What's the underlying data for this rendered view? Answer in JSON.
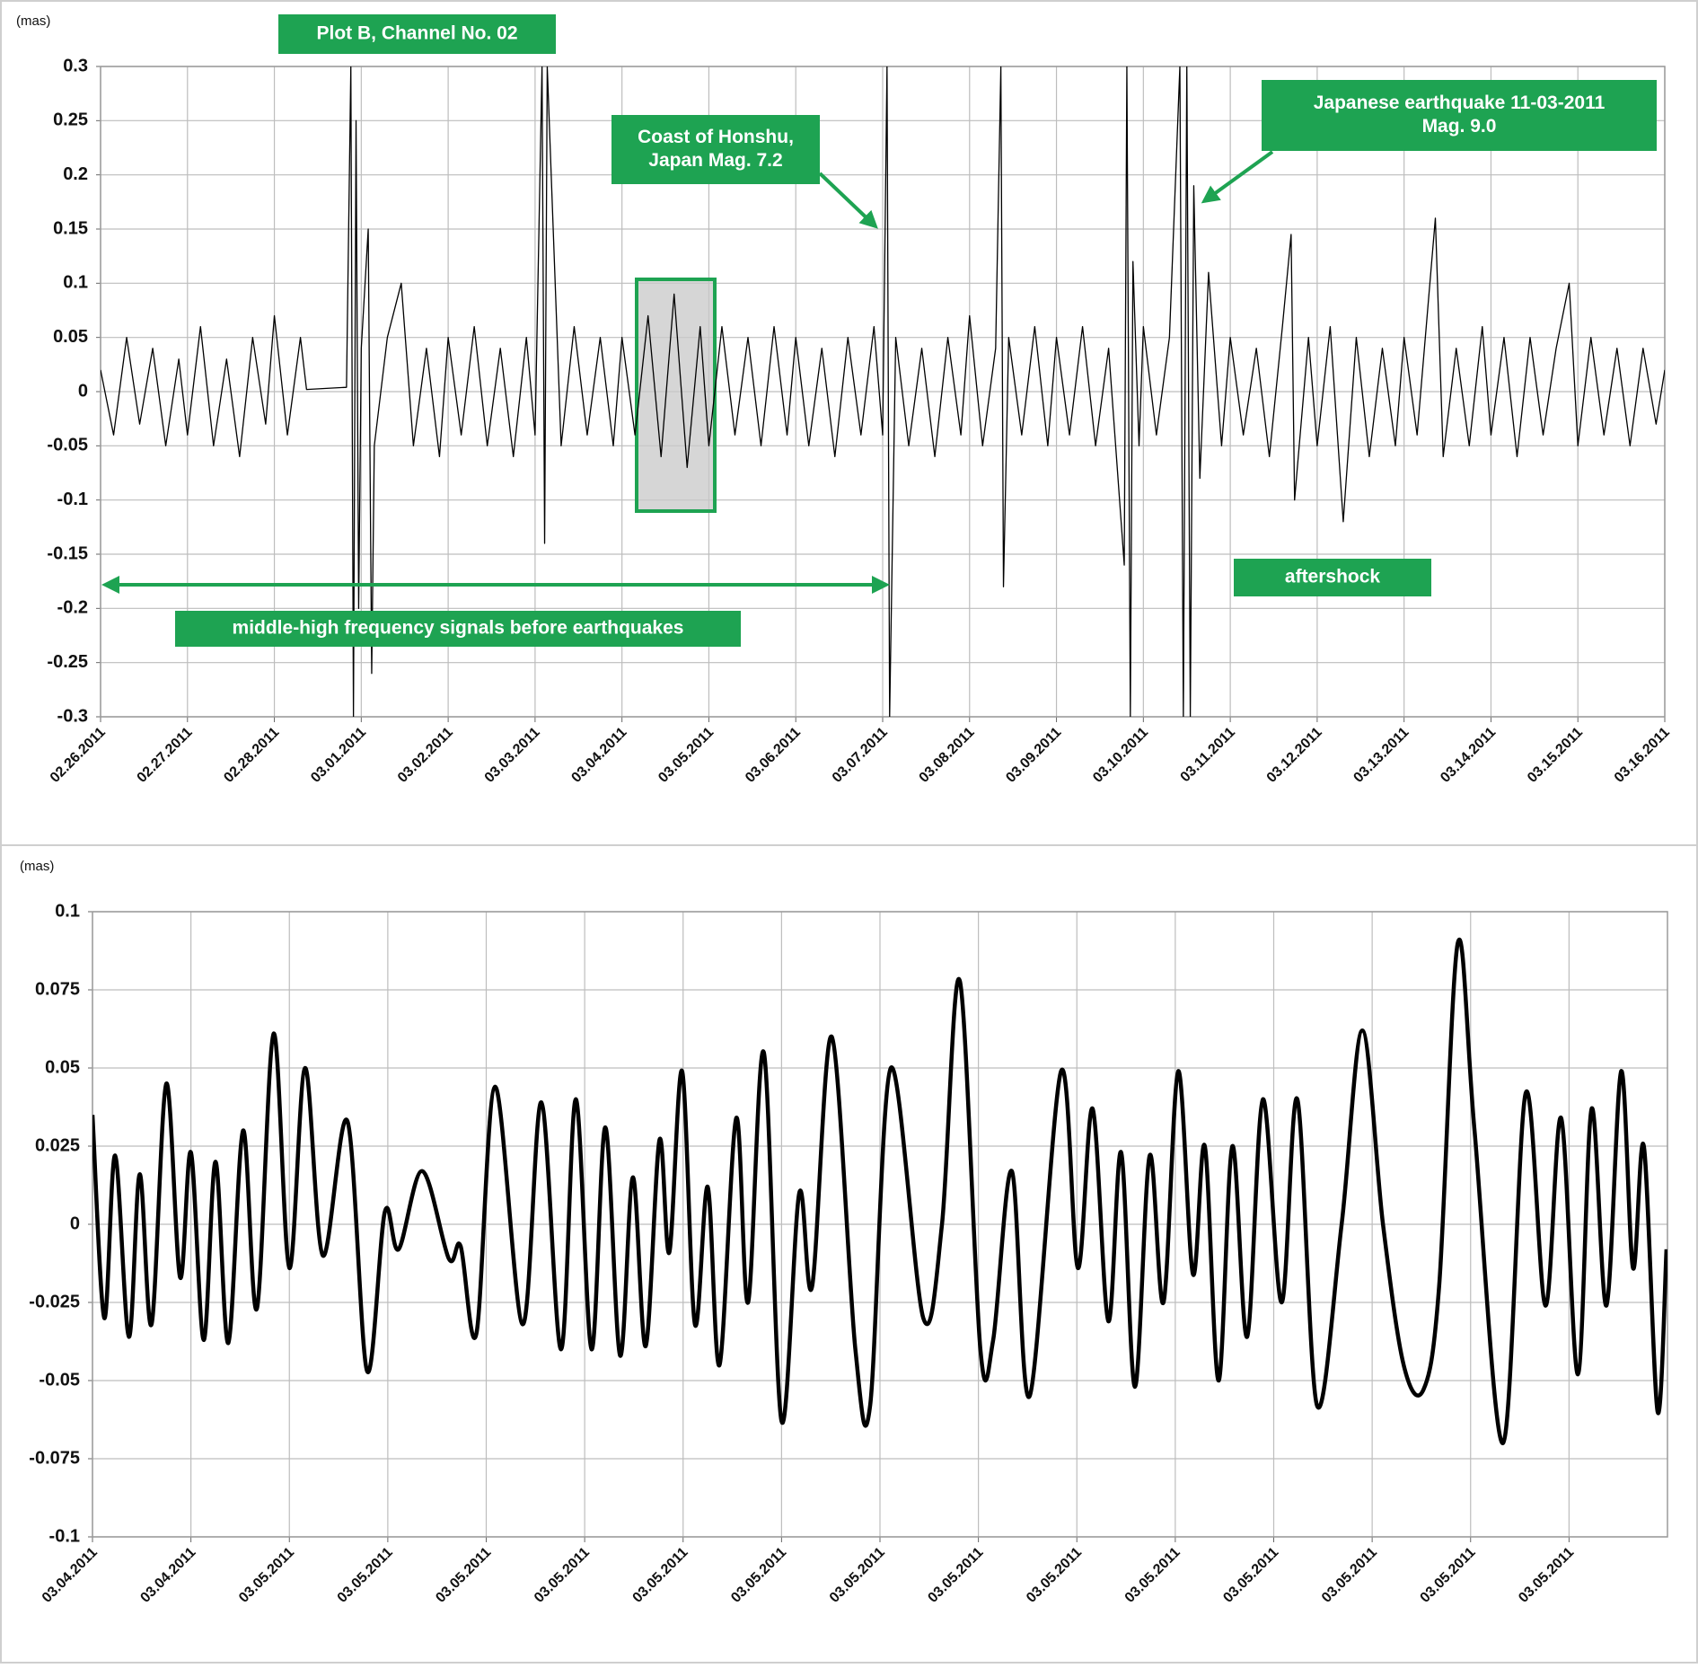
{
  "chart_data": [
    {
      "type": "line",
      "ylabel": "(mas)",
      "grid": true,
      "annotations": [
        "Plot B, Channel No. 02",
        [
          "Coast of Honshu,",
          "Japan Mag. 7.2"
        ],
        [
          "Japanese earthquake 11-03-2011",
          "Mag. 9.0"
        ],
        "aftershock",
        "middle-high frequency signals before earthquakes"
      ],
      "xlim": [
        0,
        18
      ],
      "xticks": [
        {
          "value": 0,
          "label": "02.26.2011"
        },
        {
          "value": 1,
          "label": "02.27.2011"
        },
        {
          "value": 2,
          "label": "02.28.2011"
        },
        {
          "value": 3,
          "label": "03.01.2011"
        },
        {
          "value": 4,
          "label": "03.02.2011"
        },
        {
          "value": 5,
          "label": "03.03.2011"
        },
        {
          "value": 6,
          "label": "03.04.2011"
        },
        {
          "value": 7,
          "label": "03.05.2011"
        },
        {
          "value": 8,
          "label": "03.06.2011"
        },
        {
          "value": 9,
          "label": "03.07.2011"
        },
        {
          "value": 10,
          "label": "03.08.2011"
        },
        {
          "value": 11,
          "label": "03.09.2011"
        },
        {
          "value": 12,
          "label": "03.10.2011"
        },
        {
          "value": 13,
          "label": "03.11.2011"
        },
        {
          "value": 14,
          "label": "03.12.2011"
        },
        {
          "value": 15,
          "label": "03.13.2011"
        },
        {
          "value": 16,
          "label": "03.14.2011"
        },
        {
          "value": 17,
          "label": "03.15.2011"
        },
        {
          "value": 18,
          "label": "03.16.2011"
        }
      ],
      "ylim": [
        -0.3,
        0.3
      ],
      "yticks": [
        0.3,
        0.25,
        0.2,
        0.15,
        0.1,
        0.05,
        0,
        -0.05,
        -0.1,
        -0.15,
        -0.2,
        -0.25,
        -0.3
      ],
      "series": [
        {
          "color": "#000000",
          "x": [
            0,
            0.15,
            0.3,
            0.45,
            0.6,
            0.75,
            0.9,
            1,
            1.15,
            1.3,
            1.45,
            1.6,
            1.75,
            1.9,
            2,
            2.15,
            2.3,
            2.37,
            2.6,
            2.83,
            2.88,
            2.91,
            2.94,
            2.97,
            3,
            3.08,
            3.12,
            3.15,
            3.3,
            3.46,
            3.6,
            3.75,
            3.9,
            4,
            4.15,
            4.3,
            4.45,
            4.6,
            4.75,
            4.9,
            5,
            5.08,
            5.11,
            5.14,
            5.3,
            5.45,
            5.6,
            5.75,
            5.9,
            6,
            6.15,
            6.3,
            6.45,
            6.6,
            6.75,
            6.9,
            7,
            7.15,
            7.3,
            7.45,
            7.6,
            7.75,
            7.9,
            8,
            8.15,
            8.3,
            8.45,
            8.6,
            8.75,
            8.9,
            9,
            9.05,
            9.08,
            9.15,
            9.3,
            9.45,
            9.6,
            9.75,
            9.9,
            10,
            10.15,
            10.3,
            10.36,
            10.39,
            10.45,
            10.6,
            10.75,
            10.9,
            11,
            11.15,
            11.3,
            11.45,
            11.6,
            11.78,
            11.81,
            11.85,
            11.88,
            11.95,
            12,
            12.15,
            12.3,
            12.42,
            12.46,
            12.5,
            12.54,
            12.58,
            12.65,
            12.75,
            12.9,
            13,
            13.15,
            13.3,
            13.45,
            13.6,
            13.7,
            13.74,
            13.9,
            14,
            14.15,
            14.3,
            14.45,
            14.6,
            14.75,
            14.9,
            15,
            15.15,
            15.36,
            15.45,
            15.6,
            15.75,
            15.9,
            16,
            16.15,
            16.3,
            16.45,
            16.6,
            16.75,
            16.9,
            17,
            17.15,
            17.3,
            17.45,
            17.6,
            17.75,
            17.9,
            18
          ],
          "values": [
            0.02,
            -0.04,
            0.05,
            -0.03,
            0.04,
            -0.05,
            0.03,
            -0.04,
            0.06,
            -0.05,
            0.03,
            -0.06,
            0.05,
            -0.03,
            0.07,
            -0.04,
            0.05,
            0.002,
            0.003,
            0.004,
            0.3,
            -0.3,
            0.25,
            -0.2,
            0.04,
            0.15,
            -0.26,
            -0.05,
            0.05,
            0.1,
            -0.05,
            0.04,
            -0.06,
            0.05,
            -0.04,
            0.06,
            -0.05,
            0.04,
            -0.06,
            0.05,
            -0.04,
            0.3,
            -0.14,
            0.3,
            -0.05,
            0.06,
            -0.04,
            0.05,
            -0.05,
            0.05,
            -0.04,
            0.07,
            -0.06,
            0.09,
            -0.07,
            0.06,
            -0.05,
            0.06,
            -0.04,
            0.05,
            -0.05,
            0.06,
            -0.04,
            0.05,
            -0.05,
            0.04,
            -0.06,
            0.05,
            -0.04,
            0.06,
            -0.04,
            0.3,
            -0.3,
            0.05,
            -0.05,
            0.04,
            -0.06,
            0.05,
            -0.04,
            0.07,
            -0.05,
            0.04,
            0.3,
            -0.18,
            0.05,
            -0.04,
            0.06,
            -0.05,
            0.05,
            -0.04,
            0.06,
            -0.05,
            0.04,
            -0.16,
            0.3,
            -0.3,
            0.12,
            -0.05,
            0.06,
            -0.04,
            0.05,
            0.3,
            -0.3,
            0.3,
            -0.3,
            0.19,
            -0.08,
            0.11,
            -0.05,
            0.05,
            -0.04,
            0.04,
            -0.06,
            0.06,
            0.145,
            -0.1,
            0.05,
            -0.05,
            0.06,
            -0.12,
            0.05,
            -0.06,
            0.04,
            -0.05,
            0.05,
            -0.04,
            0.16,
            -0.06,
            0.04,
            -0.05,
            0.06,
            -0.04,
            0.05,
            -0.06,
            0.05,
            -0.04,
            0.04,
            0.1,
            -0.05,
            0.05,
            -0.04,
            0.04,
            -0.05,
            0.04,
            -0.03,
            0.02
          ]
        }
      ]
    },
    {
      "type": "line",
      "ylabel": "(mas)",
      "grid": true,
      "smooth": true,
      "xlim": [
        0,
        16
      ],
      "xticks": [
        {
          "value": 0,
          "label": "03.04.2011"
        },
        {
          "value": 1,
          "label": "03.04.2011"
        },
        {
          "value": 2,
          "label": "03.05.2011"
        },
        {
          "value": 3,
          "label": "03.05.2011"
        },
        {
          "value": 4,
          "label": "03.05.2011"
        },
        {
          "value": 5,
          "label": "03.05.2011"
        },
        {
          "value": 6,
          "label": "03.05.2011"
        },
        {
          "value": 7,
          "label": "03.05.2011"
        },
        {
          "value": 8,
          "label": "03.05.2011"
        },
        {
          "value": 9,
          "label": "03.05.2011"
        },
        {
          "value": 10,
          "label": "03.05.2011"
        },
        {
          "value": 11,
          "label": "03.05.2011"
        },
        {
          "value": 12,
          "label": "03.05.2011"
        },
        {
          "value": 13,
          "label": "03.05.2011"
        },
        {
          "value": 14,
          "label": "03.05.2011"
        },
        {
          "value": 15,
          "label": "03.05.2011"
        }
      ],
      "ylim": [
        -0.1,
        0.1
      ],
      "yticks": [
        0.1,
        0.075,
        0.05,
        0.025,
        0,
        -0.025,
        -0.05,
        -0.075,
        -0.1
      ],
      "series": [
        {
          "color": "#000000",
          "x": [
            0,
            0.12,
            0.23,
            0.37,
            0.48,
            0.6,
            0.75,
            0.89,
            1.0,
            1.13,
            1.25,
            1.38,
            1.53,
            1.67,
            1.84,
            2.0,
            2.16,
            2.34,
            2.59,
            2.79,
            2.97,
            3.11,
            3.35,
            3.62,
            3.74,
            3.9,
            4.09,
            4.37,
            4.56,
            4.76,
            4.91,
            5.07,
            5.21,
            5.36,
            5.49,
            5.62,
            5.76,
            5.86,
            5.99,
            6.12,
            6.25,
            6.37,
            6.54,
            6.66,
            6.82,
            7.0,
            7.18,
            7.31,
            7.51,
            7.75,
            7.9,
            8.11,
            8.44,
            8.63,
            8.81,
            9.02,
            9.15,
            9.34,
            9.52,
            9.84,
            10.01,
            10.16,
            10.32,
            10.45,
            10.59,
            10.74,
            10.88,
            11.03,
            11.18,
            11.3,
            11.44,
            11.58,
            11.73,
            11.89,
            12.08,
            12.24,
            12.44,
            12.69,
            12.9,
            13.11,
            13.32,
            13.52,
            13.68,
            13.87,
            14.04,
            14.33,
            14.56,
            14.76,
            14.92,
            15.09,
            15.23,
            15.38,
            15.53,
            15.65,
            15.76,
            15.9,
            15.99
          ],
          "values": [
            0.035,
            -0.03,
            0.022,
            -0.036,
            0.016,
            -0.032,
            0.045,
            -0.017,
            0.023,
            -0.037,
            0.02,
            -0.038,
            0.03,
            -0.027,
            0.061,
            -0.014,
            0.05,
            -0.01,
            0.033,
            -0.047,
            0.004,
            -0.008,
            0.017,
            -0.011,
            -0.007,
            -0.035,
            0.044,
            -0.032,
            0.039,
            -0.04,
            0.04,
            -0.04,
            0.031,
            -0.042,
            0.015,
            -0.039,
            0.027,
            -0.009,
            0.049,
            -0.032,
            0.012,
            -0.045,
            0.034,
            -0.025,
            0.055,
            -0.063,
            0.01,
            -0.02,
            0.06,
            -0.04,
            -0.058,
            0.05,
            -0.03,
            0.0,
            0.078,
            -0.04,
            -0.037,
            0.017,
            -0.055,
            0.049,
            -0.014,
            0.037,
            -0.031,
            0.023,
            -0.052,
            0.022,
            -0.025,
            0.049,
            -0.016,
            0.025,
            -0.05,
            0.025,
            -0.036,
            0.04,
            -0.025,
            0.04,
            -0.058,
            0.0,
            0.062,
            0.0,
            -0.045,
            -0.053,
            -0.02,
            0.09,
            0.03,
            -0.07,
            0.042,
            -0.026,
            0.034,
            -0.048,
            0.037,
            -0.026,
            0.049,
            -0.014,
            0.025,
            -0.06,
            -0.008
          ]
        }
      ]
    }
  ]
}
